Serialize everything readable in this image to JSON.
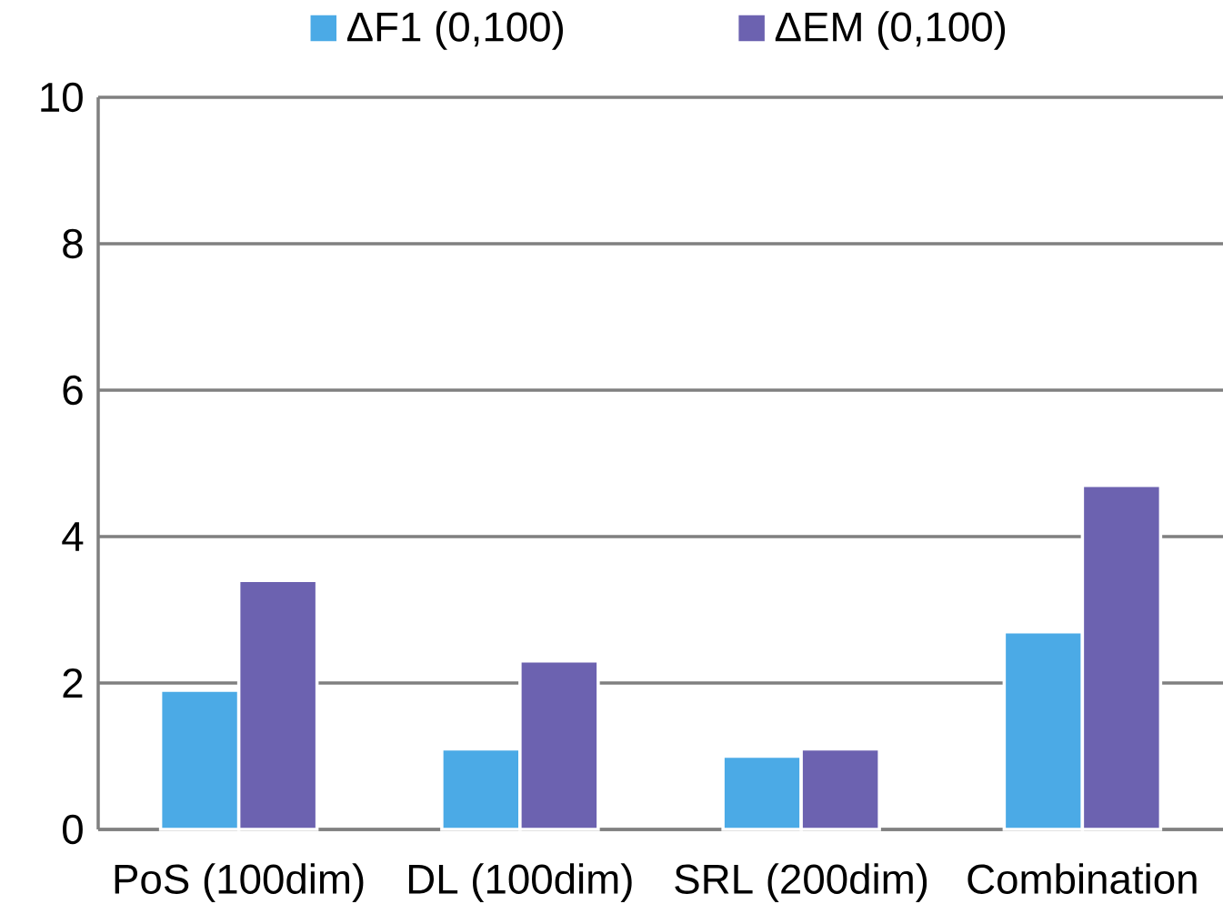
{
  "chart_data": {
    "type": "bar",
    "categories": [
      "PoS (100dim)",
      "DL (100dim)",
      "SRL (200dim)",
      "Combination"
    ],
    "series": [
      {
        "name": "ΔF1 (0,100)",
        "color": "#4baae6",
        "values": [
          1.9,
          1.1,
          1.0,
          2.7
        ]
      },
      {
        "name": "ΔEM (0,100)",
        "color": "#6c62b0",
        "values": [
          3.4,
          2.3,
          1.1,
          4.7
        ]
      }
    ],
    "ylim": [
      0,
      10
    ],
    "yticks": [
      0,
      2,
      4,
      6,
      8,
      10
    ],
    "grid": "y",
    "legend": "top"
  }
}
